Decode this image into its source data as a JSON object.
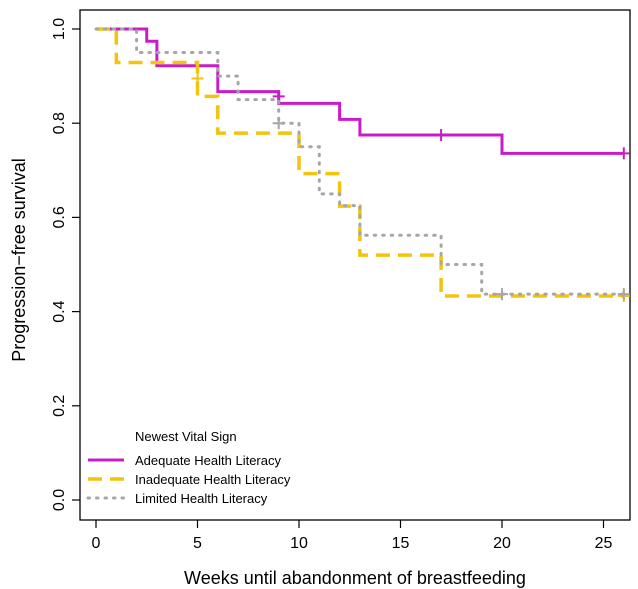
{
  "chart_data": {
    "type": "line",
    "step": true,
    "xlabel": "Weeks until abandonment of breastfeeding",
    "ylabel": "Progression−free survival",
    "xlim": [
      0,
      26
    ],
    "ylim": [
      0,
      1
    ],
    "xticks": [
      "0",
      "5",
      "10",
      "15",
      "20",
      "25"
    ],
    "yticks": [
      "0.0",
      "0.2",
      "0.4",
      "0.6",
      "0.8",
      "1.0"
    ],
    "grid": false,
    "legend": {
      "title": "Newest Vital Sign",
      "placement": "bottom-left"
    },
    "series": [
      {
        "name": "Adequate Health Literacy",
        "color": "#c81cc8",
        "style": "solid",
        "x": [
          0,
          2.5,
          3,
          6,
          9,
          12,
          13,
          20,
          26
        ],
        "y": [
          1.0,
          0.974,
          0.922,
          0.867,
          0.842,
          0.808,
          0.775,
          0.736,
          0.736
        ],
        "censored": [
          [
            9,
            0.857
          ],
          [
            17,
            0.775
          ],
          [
            26,
            0.736
          ]
        ]
      },
      {
        "name": "Inadequate Health Literacy",
        "color": "#f2c40c",
        "style": "dashed",
        "x": [
          0,
          1,
          5,
          6,
          10,
          12,
          13,
          17,
          26
        ],
        "y": [
          1.0,
          0.929,
          0.857,
          0.779,
          0.693,
          0.624,
          0.52,
          0.433,
          0.433
        ],
        "censored": [
          [
            5,
            0.895
          ],
          [
            26,
            0.433
          ]
        ]
      },
      {
        "name": "Limited Health Literacy",
        "color": "#a6a6a6",
        "style": "dotted",
        "x": [
          0,
          2,
          6,
          7,
          9,
          10,
          11,
          12,
          13,
          17,
          19,
          26
        ],
        "y": [
          1.0,
          0.95,
          0.9,
          0.85,
          0.8,
          0.75,
          0.65,
          0.625,
          0.562,
          0.5,
          0.437,
          0.437
        ],
        "censored": [
          [
            9,
            0.8
          ],
          [
            20,
            0.437
          ],
          [
            26,
            0.437
          ]
        ]
      }
    ]
  }
}
